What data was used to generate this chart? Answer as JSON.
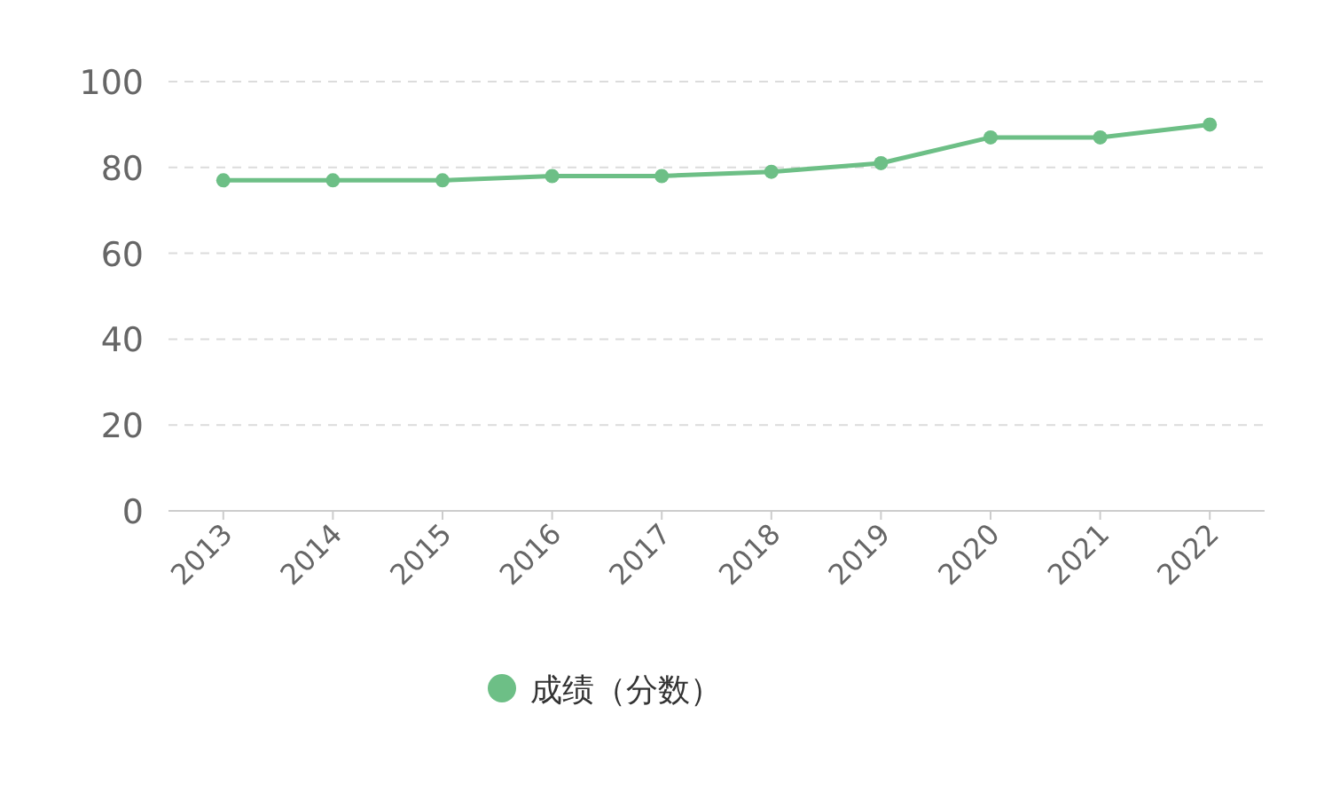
{
  "chart_data": {
    "type": "line",
    "categories": [
      "2013",
      "2014",
      "2015",
      "2016",
      "2017",
      "2018",
      "2019",
      "2020",
      "2021",
      "2022"
    ],
    "series": [
      {
        "name": "成绩（分数）",
        "color": "#6dbf86",
        "values": [
          77,
          77,
          77,
          78,
          78,
          79,
          81,
          87,
          87,
          90
        ]
      }
    ],
    "ylim": [
      0,
      100
    ],
    "yticks": [
      0,
      20,
      40,
      60,
      80,
      100
    ],
    "grid": "y",
    "legend": "bottom",
    "marker": "circle",
    "line_style": "solid"
  }
}
